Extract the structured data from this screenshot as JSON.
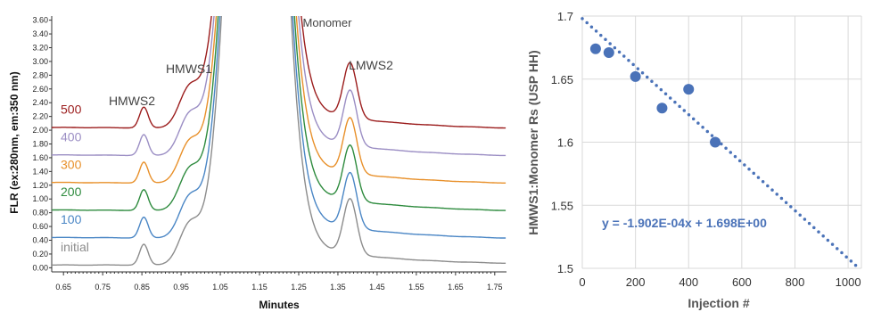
{
  "chart_data": [
    {
      "type": "line",
      "title": "",
      "xlabel": "Minutes",
      "ylabel": "FLR (ex:280nm, em:350 nm)",
      "xlim": [
        0.62,
        1.78
      ],
      "ylim": [
        -0.06,
        3.66
      ],
      "x_ticks": [
        "0.65",
        "0.75",
        "0.85",
        "0.95",
        "1.05",
        "1.15",
        "1.25",
        "1.35",
        "1.45",
        "1.55",
        "1.65",
        "1.75"
      ],
      "y_ticks": [
        "0.00",
        "0.20",
        "0.40",
        "0.60",
        "0.80",
        "1.00",
        "1.20",
        "1.40",
        "1.60",
        "1.80",
        "2.00",
        "2.20",
        "2.40",
        "2.60",
        "2.80",
        "3.00",
        "3.20",
        "3.40",
        "3.60"
      ],
      "annotations": [
        "HMWS2",
        "HMWS1",
        "Monomer",
        "LMWS2"
      ],
      "series": [
        {
          "name": "initial",
          "offset": 0.0,
          "color": "#8c8c8c"
        },
        {
          "name": "100",
          "offset": 0.4,
          "color": "#4a86c5"
        },
        {
          "name": "200",
          "offset": 0.8,
          "color": "#2e8b3e"
        },
        {
          "name": "300",
          "offset": 1.2,
          "color": "#e8902a"
        },
        {
          "name": "400",
          "offset": 1.6,
          "color": "#9b8ec4"
        },
        {
          "name": "500",
          "offset": 2.0,
          "color": "#9b1c1c"
        }
      ]
    },
    {
      "type": "scatter",
      "title": "",
      "xlabel": "Injection #",
      "ylabel": "HMWS1:Monomer Rs (USP HH)",
      "xlim": [
        0,
        1050
      ],
      "ylim": [
        1.5,
        1.7
      ],
      "x_ticks": [
        "0",
        "200",
        "400",
        "600",
        "800",
        "1000"
      ],
      "y_ticks": [
        "1.5",
        "1.55",
        "1.6",
        "1.65",
        "1.7"
      ],
      "grid": true,
      "points": [
        {
          "x": 50,
          "y": 1.674
        },
        {
          "x": 100,
          "y": 1.671
        },
        {
          "x": 200,
          "y": 1.652
        },
        {
          "x": 300,
          "y": 1.627
        },
        {
          "x": 400,
          "y": 1.642
        },
        {
          "x": 500,
          "y": 1.6
        }
      ],
      "trendline": {
        "slope": -0.0001902,
        "intercept": 1.698,
        "label": "y = -1.902E-04x + 1.698E+00"
      },
      "colors": {
        "points": "#4a72b8",
        "trend": "#4a72b8"
      }
    }
  ]
}
